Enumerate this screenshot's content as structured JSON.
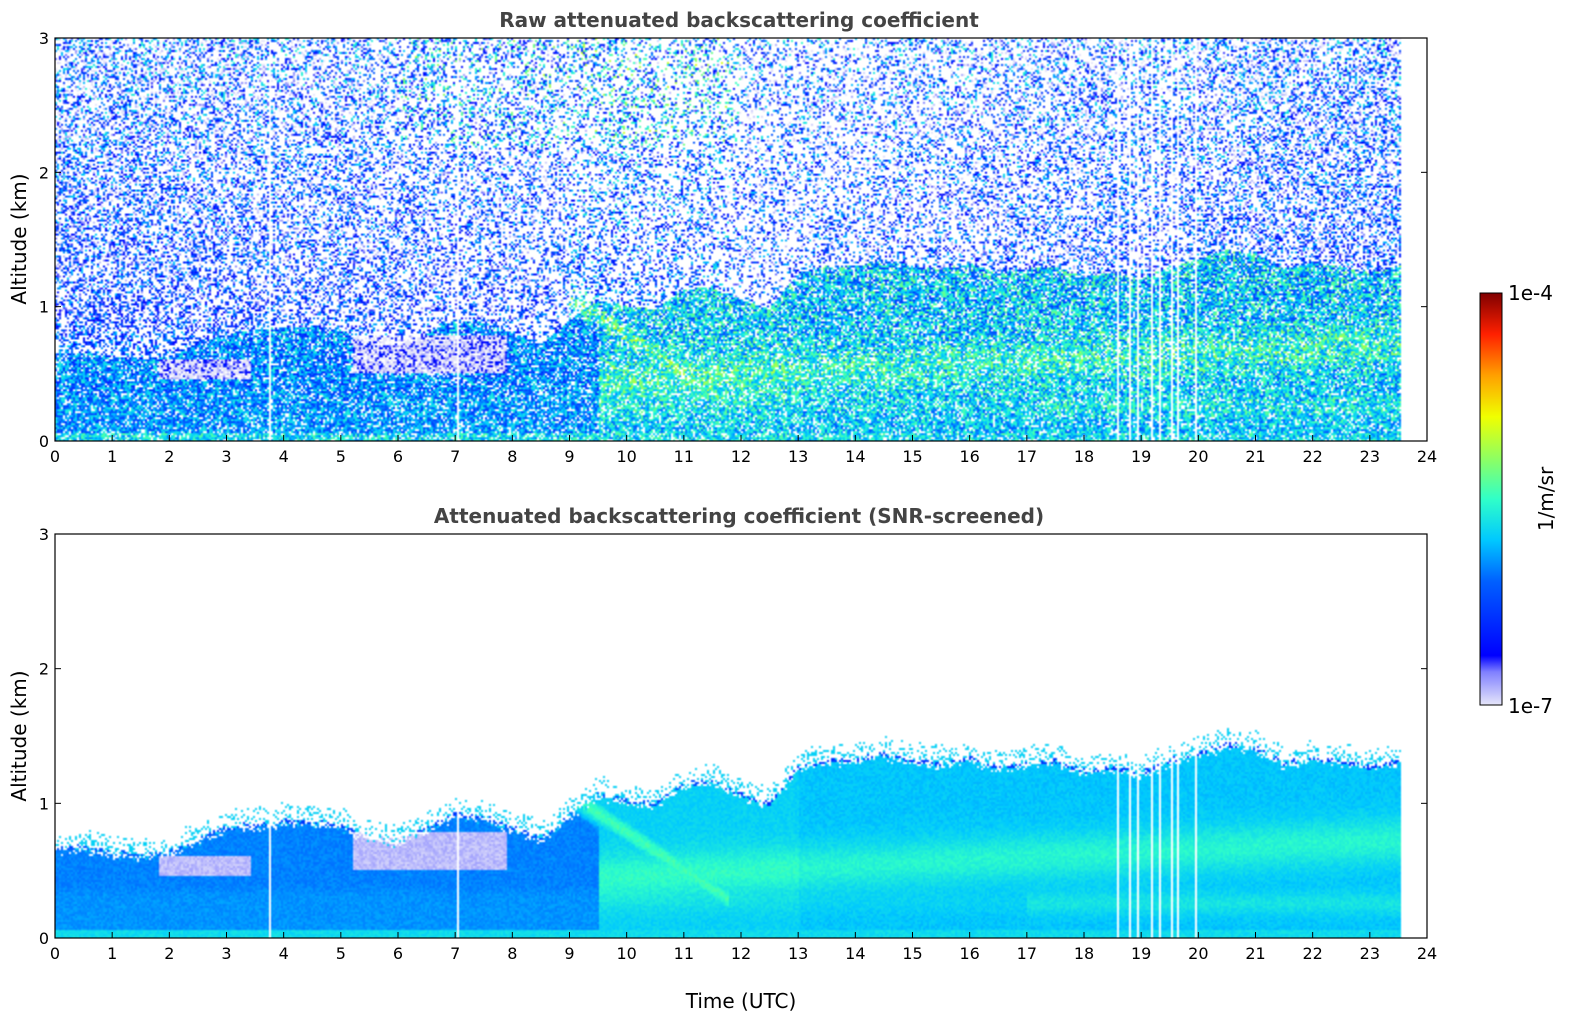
{
  "chart_data": [
    {
      "type": "heatmap",
      "title": "Raw attenuated backscattering coefficient",
      "xlabel": "",
      "ylabel": "Altitude (km)",
      "xlim": [
        0,
        24
      ],
      "ylim": [
        0,
        3
      ],
      "xticks": [
        "0",
        "1",
        "2",
        "3",
        "4",
        "5",
        "6",
        "7",
        "8",
        "9",
        "10",
        "11",
        "12",
        "13",
        "14",
        "15",
        "16",
        "17",
        "18",
        "19",
        "20",
        "21",
        "22",
        "23",
        "24"
      ],
      "yticks": [
        "0",
        "1",
        "2",
        "3"
      ],
      "data_end_time": 23.55,
      "gaps": [
        3.75,
        7.05,
        18.6,
        18.8,
        18.95,
        19.2,
        19.35,
        19.55,
        19.65,
        19.98
      ],
      "layers": [
        {
          "name": "near-surface aerosol layer",
          "x": [
            0,
            24
          ],
          "top_km": 0.35,
          "log_beta": -5.9
        },
        {
          "name": "residual layer",
          "x": [
            1.5,
            8.5
          ],
          "top_km": 0.85,
          "log_beta": -5.7
        },
        {
          "name": "boundary layer",
          "x": [
            9.5,
            23.5
          ],
          "top_km": 1.1,
          "log_beta": -5.4
        }
      ],
      "noisy_background": true
    },
    {
      "type": "heatmap",
      "title": "Attenuated backscattering coefficient (SNR-screened)",
      "xlabel": "Time (UTC)",
      "ylabel": "Altitude (km)",
      "xlim": [
        0,
        24
      ],
      "ylim": [
        0,
        3
      ],
      "xticks": [
        "0",
        "1",
        "2",
        "3",
        "4",
        "5",
        "6",
        "7",
        "8",
        "9",
        "10",
        "11",
        "12",
        "13",
        "14",
        "15",
        "16",
        "17",
        "18",
        "19",
        "20",
        "21",
        "22",
        "23",
        "24"
      ],
      "yticks": [
        "0",
        "1",
        "2",
        "3"
      ],
      "data_end_time": 23.55,
      "gaps": [
        3.75,
        7.05,
        18.6,
        18.8,
        18.95,
        19.2,
        19.35,
        19.55,
        19.65,
        19.98
      ],
      "top_profile": {
        "x": [
          0.0,
          0.5,
          1.0,
          1.5,
          2.0,
          2.5,
          3.0,
          3.5,
          4.0,
          4.5,
          5.0,
          5.5,
          6.0,
          6.5,
          7.0,
          7.5,
          8.0,
          8.5,
          9.0,
          9.5,
          10.0,
          10.5,
          11.0,
          11.5,
          12.0,
          12.5,
          13.0,
          13.5,
          14.0,
          14.5,
          15.0,
          15.5,
          16.0,
          16.5,
          17.0,
          17.5,
          18.0,
          18.5,
          19.0,
          19.5,
          20.0,
          20.5,
          21.0,
          21.5,
          22.0,
          22.5,
          23.0,
          23.55
        ],
        "top": [
          0.65,
          0.65,
          0.62,
          0.6,
          0.62,
          0.72,
          0.8,
          0.82,
          0.85,
          0.85,
          0.82,
          0.72,
          0.7,
          0.8,
          0.9,
          0.88,
          0.8,
          0.72,
          0.9,
          1.05,
          1.0,
          0.98,
          1.12,
          1.15,
          1.05,
          0.98,
          1.25,
          1.3,
          1.3,
          1.35,
          1.3,
          1.28,
          1.32,
          1.25,
          1.28,
          1.3,
          1.22,
          1.25,
          1.2,
          1.3,
          1.35,
          1.42,
          1.4,
          1.28,
          1.32,
          1.3,
          1.25,
          1.3
        ]
      },
      "clear_pockets": [
        {
          "x": [
            1.8,
            3.4
          ],
          "y": [
            0.45,
            0.6
          ]
        },
        {
          "x": [
            5.2,
            7.9
          ],
          "y": [
            0.5,
            0.78
          ]
        }
      ]
    }
  ],
  "colorbar": {
    "top_label": "1e-4",
    "bottom_label": "1e-7",
    "unit": "1/m/sr",
    "log_min": -7,
    "log_max": -4
  }
}
